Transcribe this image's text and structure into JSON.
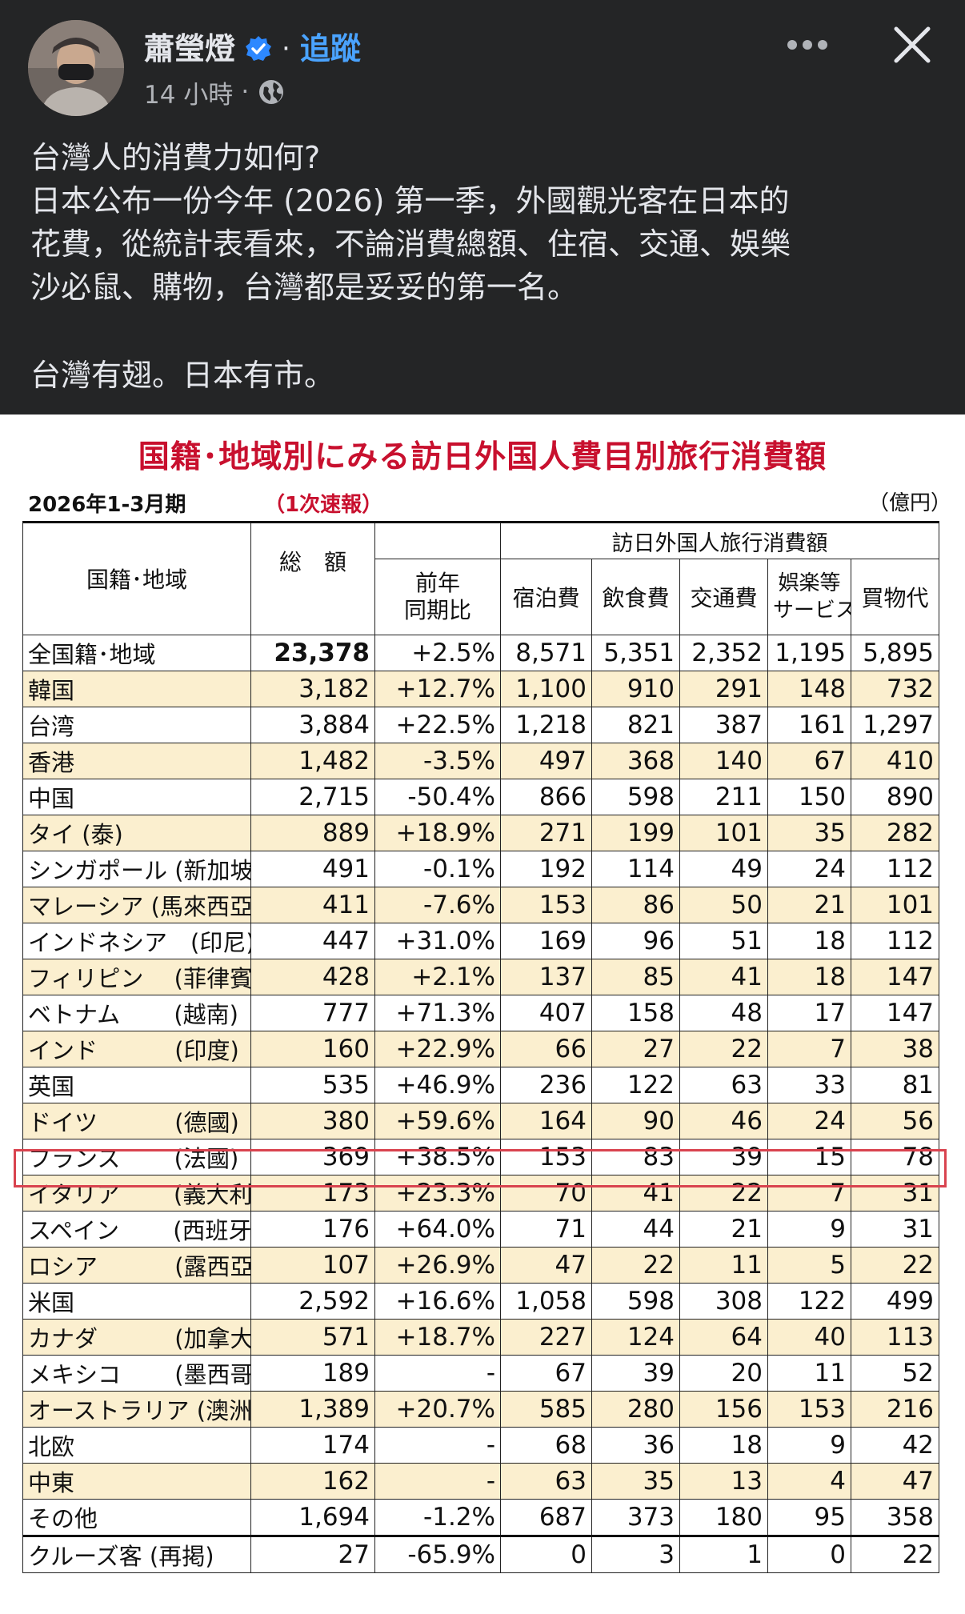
{
  "post": {
    "author": "蕭瑩燈",
    "separator": "·",
    "follow_label": "追蹤",
    "time": "14 小時",
    "meta_dot": "·",
    "text_lines": [
      "台灣人的消費力如何?",
      "日本公布一份今年 (2026) 第一季，外國觀光客在日本的",
      "花費，從統計表看來，不論消費總額、住宿、交通、娛樂",
      "沙必鼠、購物，台灣都是妥妥的第一名。"
    ],
    "text_closing": "台灣有翅。日本有市。"
  },
  "icons": {
    "verified": "verified-badge-icon",
    "globe": "globe-icon",
    "more": "more-horizontal-icon",
    "close": "close-icon"
  },
  "colors": {
    "background": "#242526",
    "text": "#e4e6eb",
    "link": "#4aa3ff",
    "title_red": "#c8102e",
    "row_highlight": "#fbefcf"
  },
  "image": {
    "title": "国籍･地域別にみる訪日外国人費目別旅行消費額",
    "period": "2026年1-3月期",
    "prelim": "（1次速報）",
    "unit": "（億円）",
    "headers": {
      "region": "国籍･地域",
      "total": "総　額",
      "yoy_line1": "前年",
      "yoy_line2": "同期比",
      "group": "訪日外国人旅行消費額",
      "lodging": "宿泊費",
      "food": "飲食費",
      "transport": "交通費",
      "ent_line1": "娯楽等",
      "ent_line2": "サービス",
      "shopping": "買物代"
    },
    "rows": [
      {
        "region": "全国籍･地域",
        "total": "23,378",
        "yoy": "+2.5%",
        "lodging": "8,571",
        "food": "5,351",
        "transport": "2,352",
        "ent": "1,195",
        "shopping": "5,895"
      },
      {
        "region": "韓国",
        "total": "3,182",
        "yoy": "+12.7%",
        "lodging": "1,100",
        "food": "910",
        "transport": "291",
        "ent": "148",
        "shopping": "732"
      },
      {
        "region": "台湾",
        "total": "3,884",
        "yoy": "+22.5%",
        "lodging": "1,218",
        "food": "821",
        "transport": "387",
        "ent": "161",
        "shopping": "1,297"
      },
      {
        "region": "香港",
        "total": "1,482",
        "yoy": "-3.5%",
        "lodging": "497",
        "food": "368",
        "transport": "140",
        "ent": "67",
        "shopping": "410"
      },
      {
        "region": "中国",
        "total": "2,715",
        "yoy": "-50.4%",
        "lodging": "866",
        "food": "598",
        "transport": "211",
        "ent": "150",
        "shopping": "890"
      },
      {
        "region": "タイ (泰)",
        "total": "889",
        "yoy": "+18.9%",
        "lodging": "271",
        "food": "199",
        "transport": "101",
        "ent": "35",
        "shopping": "282"
      },
      {
        "region": "シンガポール (新加坡)",
        "total": "491",
        "yoy": "-0.1%",
        "lodging": "192",
        "food": "114",
        "transport": "49",
        "ent": "24",
        "shopping": "112"
      },
      {
        "region": "マレーシア (馬來西亞)",
        "total": "411",
        "yoy": "-7.6%",
        "lodging": "153",
        "food": "86",
        "transport": "50",
        "ent": "21",
        "shopping": "101"
      },
      {
        "region": "インドネシア　(印尼)",
        "total": "447",
        "yoy": "+31.0%",
        "lodging": "169",
        "food": "96",
        "transport": "51",
        "ent": "18",
        "shopping": "112"
      },
      {
        "region": "フィリピン　 (菲律賓)",
        "total": "428",
        "yoy": "+2.1%",
        "lodging": "137",
        "food": "85",
        "transport": "41",
        "ent": "18",
        "shopping": "147"
      },
      {
        "region": "ベトナム　　 (越南)",
        "total": "777",
        "yoy": "+71.3%",
        "lodging": "407",
        "food": "158",
        "transport": "48",
        "ent": "17",
        "shopping": "147"
      },
      {
        "region": "インド　　　 (印度)",
        "total": "160",
        "yoy": "+22.9%",
        "lodging": "66",
        "food": "27",
        "transport": "22",
        "ent": "7",
        "shopping": "38"
      },
      {
        "region": "英国",
        "total": "535",
        "yoy": "+46.9%",
        "lodging": "236",
        "food": "122",
        "transport": "63",
        "ent": "33",
        "shopping": "81"
      },
      {
        "region": "ドイツ　　　 (德國)",
        "total": "380",
        "yoy": "+59.6%",
        "lodging": "164",
        "food": "90",
        "transport": "46",
        "ent": "24",
        "shopping": "56"
      },
      {
        "region": "フランス　　 (法國)",
        "total": "369",
        "yoy": "+38.5%",
        "lodging": "153",
        "food": "83",
        "transport": "39",
        "ent": "15",
        "shopping": "78"
      },
      {
        "region": "イタリア　　 (義大利)",
        "total": "173",
        "yoy": "+23.3%",
        "lodging": "70",
        "food": "41",
        "transport": "22",
        "ent": "7",
        "shopping": "31"
      },
      {
        "region": "スペイン　　 (西班牙)",
        "total": "176",
        "yoy": "+64.0%",
        "lodging": "71",
        "food": "44",
        "transport": "21",
        "ent": "9",
        "shopping": "31"
      },
      {
        "region": "ロシア　　　 (露西亞)",
        "total": "107",
        "yoy": "+26.9%",
        "lodging": "47",
        "food": "22",
        "transport": "11",
        "ent": "5",
        "shopping": "22"
      },
      {
        "region": "米国",
        "total": "2,592",
        "yoy": "+16.6%",
        "lodging": "1,058",
        "food": "598",
        "transport": "308",
        "ent": "122",
        "shopping": "499"
      },
      {
        "region": "カナダ　　　 (加拿大)",
        "total": "571",
        "yoy": "+18.7%",
        "lodging": "227",
        "food": "124",
        "transport": "64",
        "ent": "40",
        "shopping": "113"
      },
      {
        "region": "メキシコ　　 (墨西哥)",
        "total": "189",
        "yoy": "-",
        "lodging": "67",
        "food": "39",
        "transport": "20",
        "ent": "11",
        "shopping": "52"
      },
      {
        "region": "オーストラリア (澳洲)",
        "total": "1,389",
        "yoy": "+20.7%",
        "lodging": "585",
        "food": "280",
        "transport": "156",
        "ent": "153",
        "shopping": "216"
      },
      {
        "region": "北欧",
        "total": "174",
        "yoy": "-",
        "lodging": "68",
        "food": "36",
        "transport": "18",
        "ent": "9",
        "shopping": "42"
      },
      {
        "region": "中東",
        "total": "162",
        "yoy": "-",
        "lodging": "63",
        "food": "35",
        "transport": "13",
        "ent": "4",
        "shopping": "47"
      },
      {
        "region": "その他",
        "total": "1,694",
        "yoy": "-1.2%",
        "lodging": "687",
        "food": "373",
        "transport": "180",
        "ent": "95",
        "shopping": "358"
      },
      {
        "region": "クルーズ客 (再掲)",
        "total": "27",
        "yoy": "-65.9%",
        "lodging": "0",
        "food": "3",
        "transport": "1",
        "ent": "0",
        "shopping": "22"
      }
    ]
  }
}
